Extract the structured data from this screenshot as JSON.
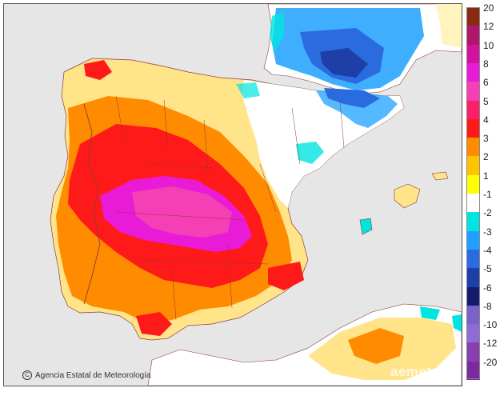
{
  "map": {
    "credit": "Agencia Estatal de Meteorología",
    "watermark": "aemet",
    "credit_icon": "copyright-icon"
  },
  "legend": {
    "items": [
      {
        "label": "20",
        "color": "#8b2a12"
      },
      {
        "label": "12",
        "color": "#b0166b"
      },
      {
        "label": "10",
        "color": "#d2119e"
      },
      {
        "label": "8",
        "color": "#ea1bd6"
      },
      {
        "label": "6",
        "color": "#f43fb5"
      },
      {
        "label": "5",
        "color": "#fb1f67"
      },
      {
        "label": "4",
        "color": "#ff1a1a"
      },
      {
        "label": "3",
        "color": "#ff8b00"
      },
      {
        "label": "2",
        "color": "#ffc400"
      },
      {
        "label": "1",
        "color": "#ffff00"
      },
      {
        "label": "-1",
        "color": "#ffffff"
      },
      {
        "label": "-2",
        "color": "#00e5e0"
      },
      {
        "label": "-3",
        "color": "#1ea0ff"
      },
      {
        "label": "-4",
        "color": "#2a6be0"
      },
      {
        "label": "-5",
        "color": "#1e3fa8"
      },
      {
        "label": "-6",
        "color": "#141a6e"
      },
      {
        "label": "-8",
        "color": "#7b62c8"
      },
      {
        "label": "-10",
        "color": "#8f6bd8"
      },
      {
        "label": "-12",
        "color": "#8a3fb0"
      },
      {
        "label": "-20",
        "color": "#7a2a9e"
      }
    ],
    "top_band_color": "#8b2a12"
  }
}
